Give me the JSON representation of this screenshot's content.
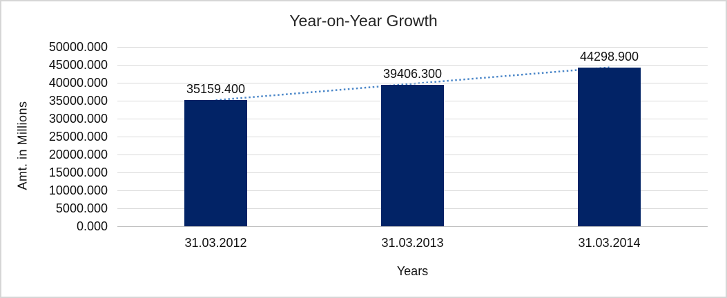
{
  "chart_data": {
    "type": "bar",
    "title": "Year-on-Year Growth",
    "xlabel": "Years",
    "ylabel": "Amt. in Millions",
    "categories": [
      "31.03.2012",
      "31.03.2013",
      "31.03.2014"
    ],
    "values": [
      35159.4,
      39406.3,
      44298.9
    ],
    "data_labels": [
      "35159.400",
      "39406.300",
      "44298.900"
    ],
    "ylim": [
      0,
      50000
    ],
    "ytick_step": 5000,
    "ytick_labels": [
      "50000.000",
      "45000.000",
      "40000.000",
      "35000.000",
      "30000.000",
      "25000.000",
      "20000.000",
      "15000.000",
      "10000.000",
      "5000.000",
      "0.000"
    ],
    "grid": true,
    "legend_position": "none",
    "trendline": {
      "type": "linear",
      "style": "dotted"
    },
    "colors": {
      "bar": "#022366",
      "trendline": "#4a86c8",
      "gridline": "#d9d9d9",
      "axis_line": "#bfbfbf",
      "text": "#111111",
      "border": "#d6d6d6",
      "background": "#ffffff"
    }
  }
}
